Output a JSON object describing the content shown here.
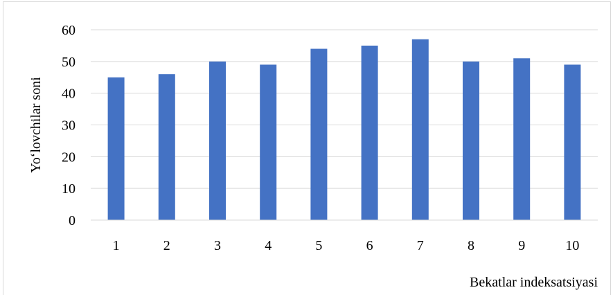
{
  "chart_data": {
    "type": "bar",
    "title": "",
    "xlabel": "Bekatlar indeksatsiyasi",
    "ylabel": "Yo‘lovchilar soni",
    "categories": [
      "1",
      "2",
      "3",
      "4",
      "5",
      "6",
      "7",
      "8",
      "9",
      "10"
    ],
    "values": [
      45,
      46,
      50,
      49,
      54,
      55,
      57,
      50,
      51,
      49
    ],
    "ylim": [
      0,
      60
    ],
    "yticks": [
      "0",
      "10",
      "20",
      "30",
      "40",
      "50",
      "60"
    ],
    "grid": true,
    "bar_color": "#4472c4",
    "gridline_color": "#d9d9d9"
  }
}
